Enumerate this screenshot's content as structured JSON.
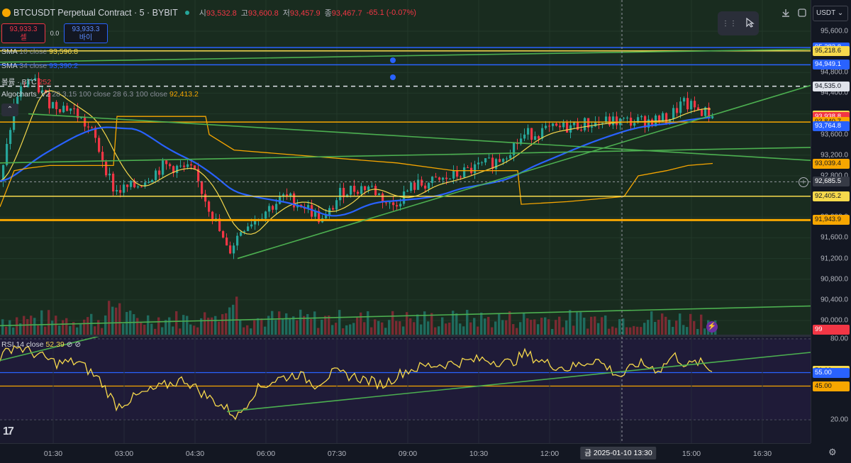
{
  "header": {
    "symbol_title": "BTCUSDT Perpetual Contract · 5 · BYBIT",
    "open_key": "시",
    "open_val": "93,532.8",
    "high_key": "고",
    "high_val": "93,600.8",
    "low_key": "저",
    "low_val": "93,457.9",
    "close_key": "종",
    "close_val": "93,467.7",
    "change": "-65.1 (-0.07%)"
  },
  "trade": {
    "sell_price": "93,933.3",
    "sell_label": "셀",
    "spread": "0.0",
    "buy_price": "93,933.3",
    "buy_label": "바이"
  },
  "legends": {
    "sma10_name": "SMA",
    "sma10_params": "10 close",
    "sma10_val": "93,596.8",
    "sma34_name": "SMA",
    "sma34_params": "34 close",
    "sma34_val": "93,390.2",
    "volume_name": "볼륨 · BTC",
    "volume_val": "252",
    "algo_name": "Algocharts_V2",
    "algo_params": "28 3.15 100 close 28 6.3 100 close",
    "algo_val": "92,413.2"
  },
  "rsi": {
    "name": "RSI",
    "params": "14 close",
    "value": "52.39"
  },
  "currency": "USDT",
  "price_axis": {
    "ticks": [
      "95,600.0",
      "95,200.0",
      "94,800.0",
      "94,400.0",
      "94,000.0",
      "93,600.0",
      "93,200.0",
      "92,800.0",
      "92,400.0",
      "92,000.0",
      "91,600.0",
      "91,200.0",
      "90,800.0",
      "90,400.0",
      "90,000.0"
    ],
    "tags": [
      {
        "label": "95,283.8",
        "bg": "#2962ff",
        "fg": "#ffffff"
      },
      {
        "label": "95,218.6",
        "bg": "#f7d94c",
        "fg": "#131722"
      },
      {
        "label": "94,949.1",
        "bg": "#2962ff",
        "fg": "#ffffff"
      },
      {
        "label": "94,535.0",
        "bg": "#e0e3eb",
        "fg": "#131722"
      },
      {
        "label": "93,966.7",
        "bg": "#f7d94c",
        "fg": "#131722"
      },
      {
        "label": "93,938.8",
        "bg": "#f23645",
        "fg": "#ffffff"
      },
      {
        "label": "01:04",
        "bg": "#f23645",
        "fg": "#ffffff"
      },
      {
        "label": "93,840.7",
        "bg": "#f7a600",
        "fg": "#131722"
      },
      {
        "label": "93,764.8",
        "bg": "#2962ff",
        "fg": "#ffffff"
      },
      {
        "label": "93,039.4",
        "bg": "#f7a600",
        "fg": "#131722"
      },
      {
        "label": "92,685.5",
        "bg": "#363a45",
        "fg": "#ffffff"
      },
      {
        "label": "92,405.2",
        "bg": "#f7d94c",
        "fg": "#131722"
      },
      {
        "label": "91,943.9",
        "bg": "#f7a600",
        "fg": "#131722"
      },
      {
        "label": "99",
        "bg": "#f23645",
        "fg": "#ffffff"
      }
    ]
  },
  "rsi_axis": {
    "ticks": [
      "80.00",
      "20.00"
    ],
    "tags": [
      {
        "label": "56.09",
        "bg": "#f7d94c",
        "fg": "#131722"
      },
      {
        "label": "55.00",
        "bg": "#2962ff",
        "fg": "#ffffff"
      },
      {
        "label": "45.00",
        "bg": "#f7a600",
        "fg": "#131722"
      }
    ]
  },
  "time_axis": {
    "labels": [
      "01:30",
      "03:00",
      "04:30",
      "06:00",
      "07:30",
      "09:00",
      "10:30",
      "12:00",
      "13:30",
      "15:00",
      "16:30"
    ],
    "crosshair": "금 2025-01-10   13:30"
  },
  "icons": {
    "download": "download-icon",
    "fullscreen": "fullscreen-icon",
    "cursor": "cursor-icon",
    "settings": "gear-icon"
  },
  "colors": {
    "up": "#26a69a",
    "down": "#f23645",
    "sma10": "#f7d94c",
    "sma34": "#2962ff",
    "algo": "#f7a600",
    "trend": "#4caf50",
    "rsi": "#f7d94c"
  }
}
